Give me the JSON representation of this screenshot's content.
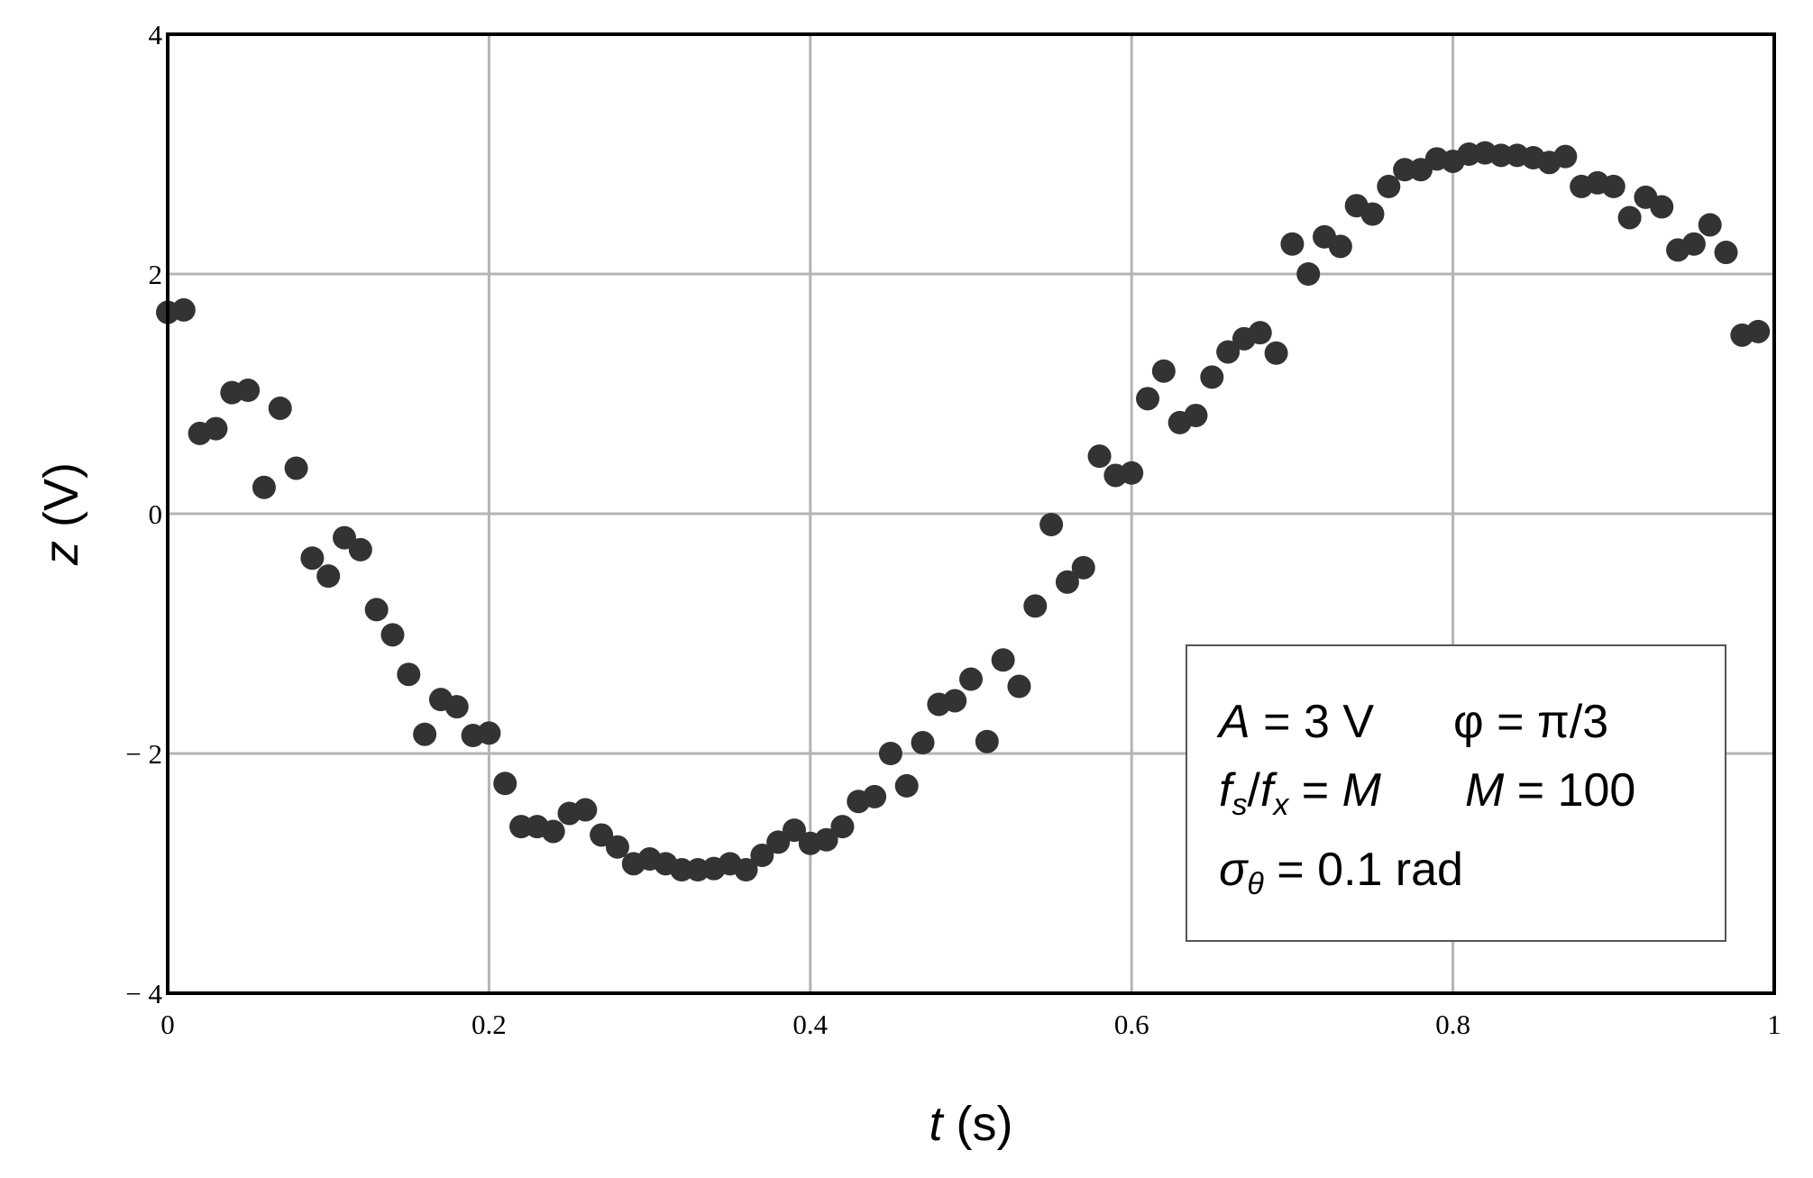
{
  "chart_data": {
    "type": "scatter",
    "title": "",
    "xlabel": {
      "var": "t",
      "unit": "(s)"
    },
    "ylabel": {
      "var": "z",
      "open": "(",
      "unit": "V",
      "close": ")"
    },
    "xlim": [
      0,
      1
    ],
    "ylim": [
      -4,
      4
    ],
    "x_ticks": [
      0,
      0.2,
      0.4,
      0.6,
      0.8,
      1
    ],
    "x_tick_labels": [
      "0",
      "0.2",
      "0.4",
      "0.6",
      "0.8",
      "1"
    ],
    "y_ticks": [
      -4,
      -2,
      0,
      2,
      4
    ],
    "y_tick_labels": [
      "− 4",
      "− 2",
      "0",
      "2",
      "4"
    ],
    "grid": true,
    "marker_color": "#333333",
    "grid_color": "#b4b4b4",
    "annotation": {
      "line1": {
        "A": "A",
        "eq1": " = 3 V",
        "phi": "φ = π/3"
      },
      "line2": {
        "f1": "f",
        "s": "s",
        "slash": "/",
        "f2": "f",
        "x": "x",
        "eq": " = ",
        "M1": "M",
        "M2": "M",
        "eq2": " = 100"
      },
      "line3": {
        "sigma": "σ",
        "theta": "θ",
        "eq": " = 0.1 rad"
      }
    },
    "points": [
      [
        0.0,
        1.68
      ],
      [
        0.01,
        1.7
      ],
      [
        0.02,
        0.67
      ],
      [
        0.03,
        0.71
      ],
      [
        0.04,
        1.01
      ],
      [
        0.05,
        1.03
      ],
      [
        0.06,
        0.22
      ],
      [
        0.07,
        0.88
      ],
      [
        0.08,
        0.38
      ],
      [
        0.09,
        -0.37
      ],
      [
        0.1,
        -0.52
      ],
      [
        0.11,
        -0.2
      ],
      [
        0.12,
        -0.3
      ],
      [
        0.13,
        -0.8
      ],
      [
        0.14,
        -1.01
      ],
      [
        0.15,
        -1.34
      ],
      [
        0.16,
        -1.84
      ],
      [
        0.17,
        -1.55
      ],
      [
        0.18,
        -1.61
      ],
      [
        0.19,
        -1.85
      ],
      [
        0.2,
        -1.83
      ],
      [
        0.21,
        -2.25
      ],
      [
        0.22,
        -2.61
      ],
      [
        0.23,
        -2.61
      ],
      [
        0.24,
        -2.65
      ],
      [
        0.25,
        -2.5
      ],
      [
        0.26,
        -2.47
      ],
      [
        0.27,
        -2.68
      ],
      [
        0.28,
        -2.78
      ],
      [
        0.29,
        -2.92
      ],
      [
        0.3,
        -2.88
      ],
      [
        0.31,
        -2.92
      ],
      [
        0.32,
        -2.97
      ],
      [
        0.33,
        -2.97
      ],
      [
        0.34,
        -2.96
      ],
      [
        0.35,
        -2.92
      ],
      [
        0.36,
        -2.97
      ],
      [
        0.37,
        -2.85
      ],
      [
        0.38,
        -2.74
      ],
      [
        0.39,
        -2.64
      ],
      [
        0.4,
        -2.75
      ],
      [
        0.41,
        -2.72
      ],
      [
        0.42,
        -2.61
      ],
      [
        0.43,
        -2.4
      ],
      [
        0.44,
        -2.36
      ],
      [
        0.45,
        -2.0
      ],
      [
        0.46,
        -2.27
      ],
      [
        0.47,
        -1.91
      ],
      [
        0.48,
        -1.59
      ],
      [
        0.49,
        -1.56
      ],
      [
        0.5,
        -1.38
      ],
      [
        0.51,
        -1.9
      ],
      [
        0.52,
        -1.22
      ],
      [
        0.53,
        -1.44
      ],
      [
        0.54,
        -0.77
      ],
      [
        0.55,
        -0.09
      ],
      [
        0.56,
        -0.57
      ],
      [
        0.57,
        -0.45
      ],
      [
        0.58,
        0.48
      ],
      [
        0.59,
        0.32
      ],
      [
        0.6,
        0.34
      ],
      [
        0.61,
        0.96
      ],
      [
        0.62,
        1.19
      ],
      [
        0.63,
        0.76
      ],
      [
        0.64,
        0.82
      ],
      [
        0.65,
        1.14
      ],
      [
        0.66,
        1.35
      ],
      [
        0.67,
        1.46
      ],
      [
        0.68,
        1.51
      ],
      [
        0.69,
        1.34
      ],
      [
        0.7,
        2.25
      ],
      [
        0.71,
        2.0
      ],
      [
        0.72,
        2.31
      ],
      [
        0.73,
        2.23
      ],
      [
        0.74,
        2.57
      ],
      [
        0.75,
        2.5
      ],
      [
        0.76,
        2.73
      ],
      [
        0.77,
        2.87
      ],
      [
        0.78,
        2.87
      ],
      [
        0.79,
        2.96
      ],
      [
        0.8,
        2.94
      ],
      [
        0.81,
        3.0
      ],
      [
        0.82,
        3.01
      ],
      [
        0.83,
        2.99
      ],
      [
        0.84,
        2.99
      ],
      [
        0.85,
        2.97
      ],
      [
        0.86,
        2.93
      ],
      [
        0.87,
        2.98
      ],
      [
        0.88,
        2.73
      ],
      [
        0.89,
        2.76
      ],
      [
        0.9,
        2.73
      ],
      [
        0.91,
        2.47
      ],
      [
        0.92,
        2.64
      ],
      [
        0.93,
        2.56
      ],
      [
        0.94,
        2.2
      ],
      [
        0.95,
        2.25
      ],
      [
        0.96,
        2.41
      ],
      [
        0.97,
        2.18
      ],
      [
        0.98,
        1.49
      ],
      [
        0.99,
        1.52
      ]
    ]
  }
}
